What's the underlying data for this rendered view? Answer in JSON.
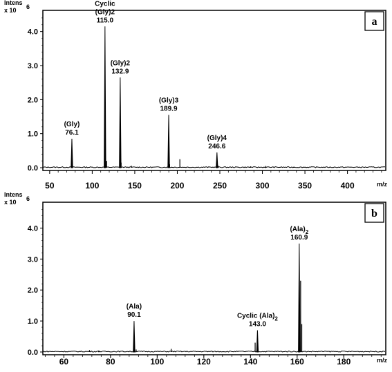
{
  "chart_data": [
    {
      "type": "line",
      "panel_label": "a",
      "ylabel": "Intens",
      "y_scale_label": "x 10",
      "y_scale_exponent": "6",
      "xlabel": "m/z",
      "xlim": [
        42,
        445
      ],
      "ylim": [
        0,
        4.5
      ],
      "x_ticks": [
        50,
        100,
        150,
        200,
        250,
        300,
        350,
        400
      ],
      "y_ticks": [
        0.0,
        1.0,
        2.0,
        3.0,
        4.0
      ],
      "y_tick_labels": [
        "0.0",
        "1.0",
        "2.0",
        "3.0",
        "4.0"
      ],
      "peaks": [
        {
          "x": 76.1,
          "y": 0.85,
          "label_lines": [
            "(Gly)",
            "76.1"
          ]
        },
        {
          "x": 115.0,
          "y": 4.15,
          "label_lines": [
            "Cyclic",
            "(Gly)2",
            "115.0"
          ]
        },
        {
          "x": 132.9,
          "y": 2.65,
          "label_lines": [
            "(Gly)2",
            "132.9"
          ]
        },
        {
          "x": 189.9,
          "y": 1.55,
          "label_lines": [
            "(Gly)3",
            "189.9"
          ]
        },
        {
          "x": 246.6,
          "y": 0.45,
          "label_lines": [
            "(Gly)4",
            "246.6"
          ]
        }
      ],
      "minor_peaks": [
        {
          "x": 117.0,
          "y": 0.2
        },
        {
          "x": 134.0,
          "y": 0.15
        },
        {
          "x": 146.0,
          "y": 0.06
        },
        {
          "x": 191.0,
          "y": 0.1
        },
        {
          "x": 203.0,
          "y": 0.25
        },
        {
          "x": 248.0,
          "y": 0.06
        },
        {
          "x": 286.0,
          "y": 0.04
        },
        {
          "x": 304.0,
          "y": 0.05
        },
        {
          "x": 337.0,
          "y": 0.03
        }
      ]
    },
    {
      "type": "line",
      "panel_label": "b",
      "ylabel": "Intens",
      "y_scale_label": "x 10",
      "y_scale_exponent": "6",
      "xlabel": "m/z",
      "xlim": [
        51,
        198
      ],
      "ylim": [
        0,
        4.7
      ],
      "x_ticks": [
        60,
        80,
        100,
        120,
        140,
        160,
        180
      ],
      "y_ticks": [
        0.0,
        1.0,
        2.0,
        3.0,
        4.0
      ],
      "y_tick_labels": [
        "0.0",
        "1.0",
        "2.0",
        "3.0",
        "4.0"
      ],
      "peaks": [
        {
          "x": 90.1,
          "y": 1.0,
          "label_lines": [
            "(Ala)",
            "90.1"
          ]
        },
        {
          "x": 143.0,
          "y": 0.7,
          "label_lines": [
            "Cyclic (Ala)2",
            "143.0"
          ]
        },
        {
          "x": 160.9,
          "y": 3.5,
          "label_lines": [
            "(Ala)2",
            "160.9"
          ]
        }
      ],
      "minor_peaks": [
        {
          "x": 71.0,
          "y": 0.06
        },
        {
          "x": 75.0,
          "y": 0.05
        },
        {
          "x": 91.0,
          "y": 0.08
        },
        {
          "x": 106.0,
          "y": 0.1
        },
        {
          "x": 142.0,
          "y": 0.3
        },
        {
          "x": 161.5,
          "y": 2.3
        },
        {
          "x": 162.0,
          "y": 0.9
        }
      ]
    }
  ]
}
